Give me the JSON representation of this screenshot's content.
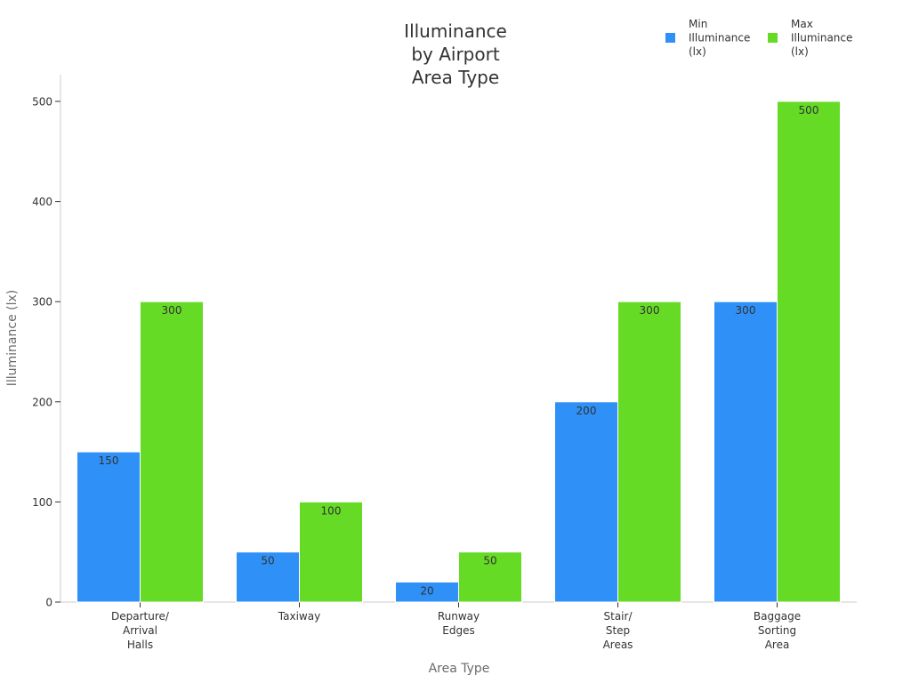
{
  "chart_data": {
    "type": "bar",
    "title_lines": [
      "Illuminance",
      "by Airport",
      "Area Type"
    ],
    "xlabel": "Area Type",
    "ylabel": "Illuminance (lx)",
    "ylim": [
      0,
      525
    ],
    "yticks": [
      0,
      100,
      200,
      300,
      400,
      500
    ],
    "grid": false,
    "legend_position": "top-right",
    "categories": [
      [
        "Departure/",
        "Arrival",
        "Halls"
      ],
      [
        "Taxiway"
      ],
      [
        "Runway",
        "Edges"
      ],
      [
        "Stair/",
        "Step",
        "Areas"
      ],
      [
        "Baggage",
        "Sorting",
        "Area"
      ]
    ],
    "series": [
      {
        "name_lines": [
          "Min",
          "Illuminance",
          "(lx)"
        ],
        "color": "#2F90F7",
        "values": [
          150,
          50,
          20,
          200,
          300
        ]
      },
      {
        "name_lines": [
          "Max",
          "Illuminance",
          "(lx)"
        ],
        "color": "#66DB26",
        "values": [
          300,
          100,
          50,
          300,
          500
        ]
      }
    ]
  }
}
